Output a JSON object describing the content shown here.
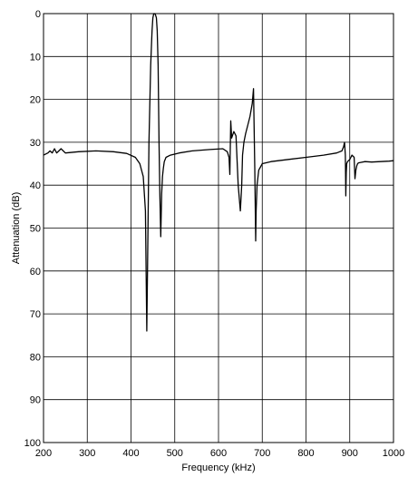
{
  "chart_data": {
    "type": "line",
    "title": "",
    "xlabel": "Frequency (kHz)",
    "ylabel": "Attenuation (dB)",
    "xlim": [
      200,
      1000
    ],
    "ylim": [
      0,
      100
    ],
    "y_inverted": true,
    "grid": true,
    "x_ticks": [
      "200",
      "300",
      "400",
      "500",
      "600",
      "700",
      "800",
      "900",
      "1000"
    ],
    "y_ticks": [
      "0",
      "10",
      "20",
      "30",
      "40",
      "50",
      "60",
      "70",
      "80",
      "90",
      "100"
    ],
    "series": [
      {
        "x": [
          200,
          210,
          215,
          220,
          225,
          230,
          235,
          240,
          250,
          280,
          320,
          360,
          390,
          410,
          420,
          428,
          433,
          436,
          438,
          441,
          445,
          448,
          450,
          452,
          454,
          456,
          458,
          460,
          462,
          464,
          466,
          468,
          470,
          472,
          474,
          476,
          480,
          490,
          510,
          540,
          580,
          610,
          620,
          624,
          626,
          628,
          630,
          635,
          640,
          645,
          650,
          653,
          655,
          658,
          662,
          667,
          672,
          677,
          680,
          683,
          685,
          686,
          688,
          692,
          700,
          720,
          760,
          800,
          840,
          870,
          882,
          886,
          888,
          890,
          891,
          892,
          893,
          895,
          900,
          905,
          910,
          912,
          914,
          916,
          918,
          920,
          925,
          935,
          950,
          970,
          990,
          1000
        ],
        "y": [
          33,
          32.5,
          32,
          32.5,
          31.5,
          32.5,
          32,
          31.5,
          32.5,
          32.2,
          32,
          32.2,
          32.6,
          33.5,
          35,
          38,
          46,
          74,
          58,
          30,
          12,
          4,
          1,
          0,
          0,
          0.3,
          1,
          4,
          12,
          30,
          42,
          52,
          42,
          38,
          36,
          34.5,
          33.5,
          33,
          32.5,
          32,
          31.7,
          31.5,
          32.2,
          33.5,
          37.5,
          25,
          29,
          27.5,
          28.5,
          40,
          46,
          40,
          33,
          30,
          28,
          26,
          24,
          21,
          17.5,
          36,
          53,
          46,
          40,
          36.5,
          35,
          34.5,
          34,
          33.5,
          33,
          32.5,
          32,
          31,
          30,
          33,
          42.5,
          37,
          35,
          34.5,
          34,
          33,
          33.5,
          38.5,
          36.5,
          35.5,
          35,
          34.8,
          34.7,
          34.5,
          34.6,
          34.5,
          34.4,
          34.3
        ]
      }
    ]
  }
}
